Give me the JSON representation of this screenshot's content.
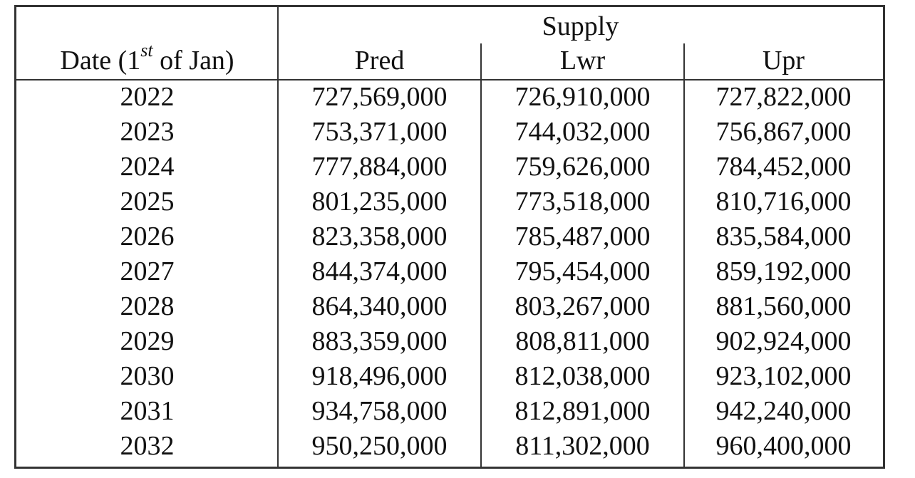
{
  "table": {
    "group_header": "Supply",
    "columns": {
      "date_pre": "Date (1",
      "date_sup": "st",
      "date_post": " of Jan)",
      "pred": "Pred",
      "lwr": "Lwr",
      "upr": "Upr"
    },
    "rows": [
      {
        "date": "2022",
        "pred": "727,569,000",
        "lwr": "726,910,000",
        "upr": "727,822,000"
      },
      {
        "date": "2023",
        "pred": "753,371,000",
        "lwr": "744,032,000",
        "upr": "756,867,000"
      },
      {
        "date": "2024",
        "pred": "777,884,000",
        "lwr": "759,626,000",
        "upr": "784,452,000"
      },
      {
        "date": "2025",
        "pred": "801,235,000",
        "lwr": "773,518,000",
        "upr": "810,716,000"
      },
      {
        "date": "2026",
        "pred": "823,358,000",
        "lwr": "785,487,000",
        "upr": "835,584,000"
      },
      {
        "date": "2027",
        "pred": "844,374,000",
        "lwr": "795,454,000",
        "upr": "859,192,000"
      },
      {
        "date": "2028",
        "pred": "864,340,000",
        "lwr": "803,267,000",
        "upr": "881,560,000"
      },
      {
        "date": "2029",
        "pred": "883,359,000",
        "lwr": "808,811,000",
        "upr": "902,924,000"
      },
      {
        "date": "2030",
        "pred": "918,496,000",
        "lwr": "812,038,000",
        "upr": "923,102,000"
      },
      {
        "date": "2031",
        "pred": "934,758,000",
        "lwr": "812,891,000",
        "upr": "942,240,000"
      },
      {
        "date": "2032",
        "pred": "950,250,000",
        "lwr": "811,302,000",
        "upr": "960,400,000"
      }
    ]
  }
}
